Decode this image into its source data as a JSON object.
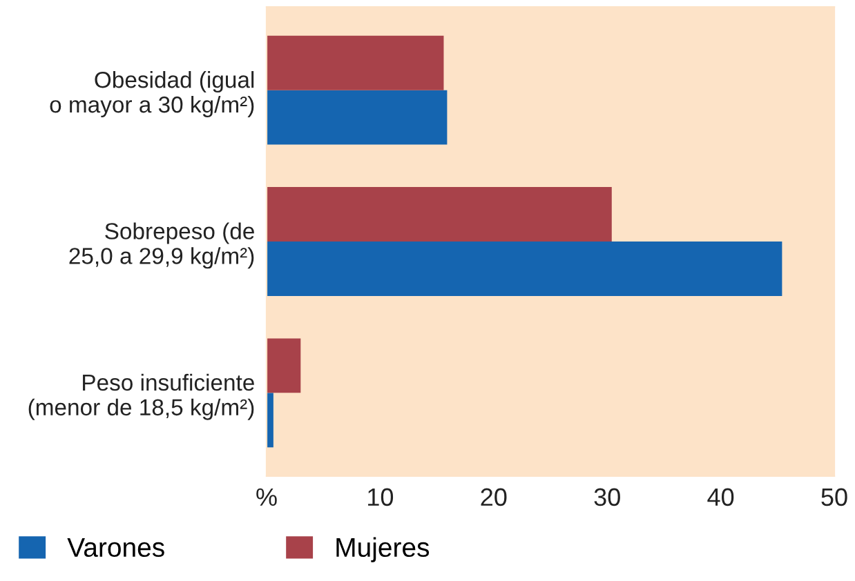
{
  "chart_data": {
    "type": "bar",
    "orientation": "horizontal",
    "categories": [
      "Obesidad (igual\no mayor a 30 kg/m²)",
      "Sobrepeso (de\n25,0 a 29,9 kg/m²)",
      "Peso insuficiente\n(menor de 18,5 kg/m²)"
    ],
    "series": [
      {
        "name": "Varones",
        "color": "#1565b0",
        "values": [
          15.9,
          45.4,
          0.6
        ]
      },
      {
        "name": "Mujeres",
        "color": "#a8424a",
        "values": [
          15.6,
          30.4,
          3.0
        ]
      }
    ],
    "xlim": [
      0,
      50
    ],
    "xticks": [
      {
        "value": 0,
        "label": "%"
      },
      10,
      20,
      30,
      40,
      50
    ],
    "grid": false,
    "legend": "bottom left"
  }
}
